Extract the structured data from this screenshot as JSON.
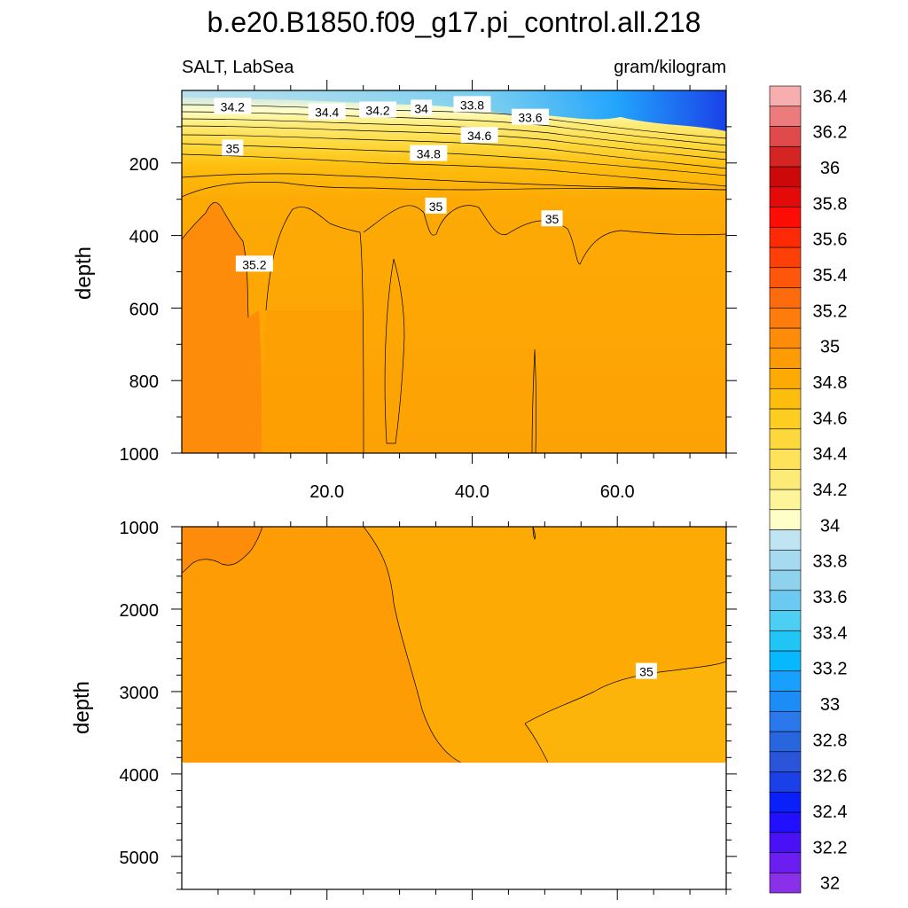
{
  "chart_data": {
    "type": "heatmap",
    "title": "b.e20.B1850.f09_g17.pi_control.all.218",
    "left_subtitle": "SALT, LabSea",
    "right_subtitle": "gram/kilogram",
    "panels": [
      {
        "name": "upper",
        "ylabel": "depth",
        "ylim": [
          0,
          1000
        ],
        "yticks": [
          "200",
          "400",
          "600",
          "800",
          "1000"
        ],
        "xlim": [
          0,
          75
        ],
        "xticks": [
          "20.0",
          "40.0",
          "60.0"
        ],
        "contour_labels": [
          {
            "text": "34.2",
            "x": 7,
            "y": 45
          },
          {
            "text": "34.4",
            "x": 20,
            "y": 60
          },
          {
            "text": "34.2",
            "x": 27,
            "y": 55
          },
          {
            "text": "34",
            "x": 33,
            "y": 50
          },
          {
            "text": "33.8",
            "x": 40,
            "y": 40
          },
          {
            "text": "33.6",
            "x": 48,
            "y": 75
          },
          {
            "text": "34.6",
            "x": 41,
            "y": 125
          },
          {
            "text": "34.8",
            "x": 34,
            "y": 175
          },
          {
            "text": "35",
            "x": 7,
            "y": 160
          },
          {
            "text": "35",
            "x": 35,
            "y": 320
          },
          {
            "text": "35",
            "x": 51,
            "y": 355
          },
          {
            "text": "35.2",
            "x": 10,
            "y": 480
          }
        ]
      },
      {
        "name": "lower",
        "ylabel": "depth",
        "ylim": [
          1000,
          5400
        ],
        "yticks": [
          "1000",
          "2000",
          "3000",
          "4000",
          "5000"
        ],
        "xlim": [
          0,
          75
        ],
        "ocean_floor_depth": 3860,
        "contour_labels": [
          {
            "text": "35",
            "x": 64,
            "y": 2760
          }
        ]
      }
    ],
    "colorbar": {
      "labels": [
        "32",
        "32.2",
        "32.4",
        "32.6",
        "32.8",
        "33",
        "33.2",
        "33.4",
        "33.6",
        "33.8",
        "34",
        "34.2",
        "34.4",
        "34.6",
        "34.8",
        "35",
        "35.2",
        "35.4",
        "35.6",
        "35.8",
        "36",
        "36.2",
        "36.4"
      ],
      "colors": [
        "#8a30e8",
        "#6a1ff0",
        "#4a10f6",
        "#2010ff",
        "#0a20f8",
        "#1a40e8",
        "#2a55d8",
        "#2866e0",
        "#2a78ec",
        "#1c8cf6",
        "#18a0ff",
        "#08b8ff",
        "#22c6f6",
        "#4ccff2",
        "#6ccaf2",
        "#8ed2ee",
        "#a6daf0",
        "#c0e4f2",
        "#fefec8",
        "#fef59a",
        "#fdeb78",
        "#fde25a",
        "#fdd83c",
        "#fecd22",
        "#fdbe0e",
        "#fdaa05",
        "#fd9c04",
        "#fd8c0a",
        "#fd7c0c",
        "#fd6c0c",
        "#fe560a",
        "#fe4008",
        "#fe2a06",
        "#fe0c06",
        "#e50a0a",
        "#cc0808",
        "#d42424",
        "#e04a4a",
        "#ec7c7c",
        "#f7aeae"
      ]
    }
  }
}
